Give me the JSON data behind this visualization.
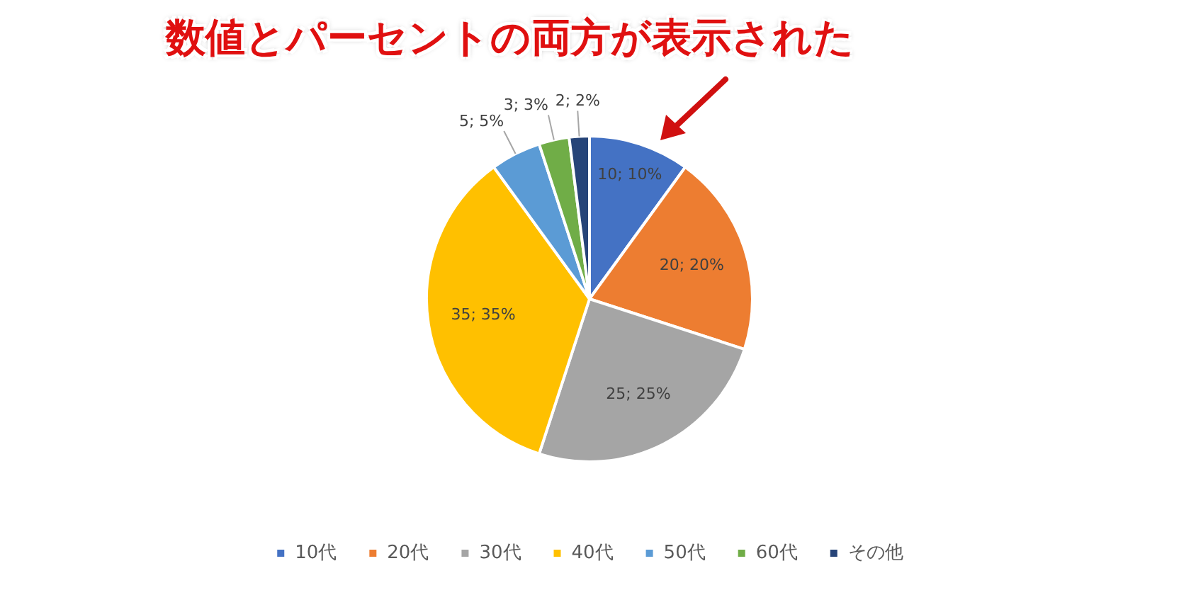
{
  "chart_data": {
    "type": "pie",
    "categories": [
      "10代",
      "20代",
      "30代",
      "40代",
      "50代",
      "60代",
      "その他"
    ],
    "values": [
      10,
      20,
      25,
      35,
      5,
      3,
      2
    ],
    "colors": [
      "#4472c4",
      "#ed7d31",
      "#a5a5a5",
      "#ffc000",
      "#5b9bd5",
      "#70ad47",
      "#264478"
    ],
    "value_labels": [
      "10; 10%",
      "20; 20%",
      "25; 25%",
      "35; 35%",
      "5; 5%",
      "3; 3%",
      "2; 2%"
    ],
    "legend": "bottom",
    "annotations": [
      "数値とパーセントの両方が表示された"
    ]
  }
}
